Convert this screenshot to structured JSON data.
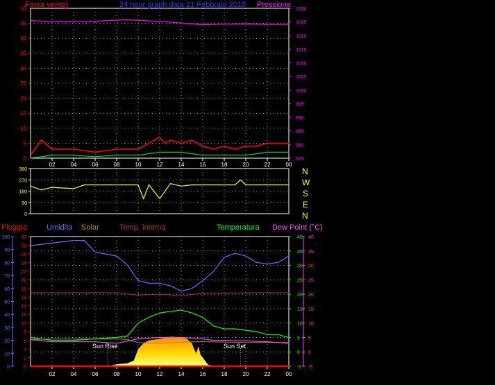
{
  "colors": {
    "background": "#000000",
    "axis_grid": "#ffffff",
    "wind": "#ff0000",
    "gust": "#ffffff",
    "wind_avg": "#00ff00",
    "pressure": "#ff00ff",
    "direction": "#ffff00",
    "humidity": "#6a6aff",
    "solar": "#a09030",
    "temp_int": "#aa3333",
    "temperature": "#00ff00",
    "dewpoint": "#ff44ff",
    "rain": "#ff0000",
    "sun": "#ffd700"
  },
  "header": {
    "wind_label": "Forza vento)",
    "title": "24 hour graph data   21 Febbraio 2016",
    "pressure_label": "Pressione"
  },
  "compass": [
    "N",
    "W",
    "S",
    "E",
    "N"
  ],
  "lower_labels": {
    "rain": "Pioggia",
    "humidity": "Umidita",
    "solar": "Solar",
    "temp_int": "Temp. interna",
    "temperature": "Temperatura",
    "dewpoint": "Dew Point (°C)"
  },
  "annotations": {
    "sun_rise": "Sun Rise",
    "sun_set": "Sun Set"
  },
  "chart_data": [
    {
      "type": "line",
      "name": "wind-pressure",
      "x_ticks": [
        "02",
        "04",
        "06",
        "08",
        "10",
        "12",
        "14",
        "16",
        "18",
        "20",
        "22",
        "00"
      ],
      "x_range_hours": [
        0,
        24
      ],
      "y_left": {
        "label": "Forza vento)",
        "ticks": [
          0,
          5,
          10,
          15,
          20,
          25,
          30,
          35,
          40,
          45,
          50
        ],
        "range": [
          0,
          50
        ]
      },
      "y_right": {
        "label": "Pressione",
        "ticks": [
          975,
          980,
          985,
          990,
          995,
          1000,
          1005,
          1010,
          1015,
          1020,
          1025,
          1030
        ],
        "range": [
          975,
          1030
        ]
      },
      "series": [
        {
          "name": "Pressione",
          "points": [
            [
              0,
              1025.5
            ],
            [
              3,
              1025
            ],
            [
              6,
              1025.3
            ],
            [
              9,
              1025.8
            ],
            [
              11,
              1025.4
            ],
            [
              13,
              1024.9
            ],
            [
              15,
              1024.3
            ],
            [
              16,
              1024
            ],
            [
              18,
              1024.2
            ],
            [
              20,
              1024.3
            ],
            [
              22,
              1024.1
            ],
            [
              24,
              1024.1
            ]
          ]
        },
        {
          "points": [
            [
              0,
              1
            ],
            [
              1,
              6
            ],
            [
              2,
              3
            ],
            [
              4,
              3
            ],
            [
              6,
              2
            ],
            [
              8,
              3
            ],
            [
              10,
              3
            ],
            [
              11,
              5
            ],
            [
              12,
              7
            ],
            [
              12.5,
              5
            ],
            [
              13,
              6
            ],
            [
              14,
              5
            ],
            [
              15,
              6
            ],
            [
              16,
              4
            ],
            [
              17,
              3
            ],
            [
              18,
              4
            ],
            [
              19,
              3
            ],
            [
              20,
              4
            ],
            [
              21,
              4
            ],
            [
              22,
              5
            ],
            [
              23,
              5
            ],
            [
              24,
              5
            ]
          ]
        },
        {
          "points": [
            [
              0,
              0
            ],
            [
              2,
              1
            ],
            [
              4,
              1
            ],
            [
              6,
              0.5
            ],
            [
              8,
              1
            ],
            [
              10,
              1
            ],
            [
              12,
              2
            ],
            [
              14,
              2
            ],
            [
              16,
              1
            ],
            [
              18,
              1
            ],
            [
              20,
              1
            ],
            [
              22,
              2
            ],
            [
              24,
              2
            ]
          ]
        }
      ]
    },
    {
      "type": "line",
      "name": "wind-direction",
      "x_ticks": [
        "02",
        "04",
        "06",
        "08",
        "10",
        "12",
        "14",
        "16",
        "18",
        "20",
        "22",
        "00"
      ],
      "y_left": {
        "ticks": [
          0,
          90,
          180,
          270,
          360
        ],
        "range": [
          0,
          360
        ]
      },
      "series": [
        {
          "points": [
            [
              0,
              220
            ],
            [
              1,
              190
            ],
            [
              2,
              210
            ],
            [
              4,
              200
            ],
            [
              5,
              230
            ],
            [
              7,
              230
            ],
            [
              9,
              230
            ],
            [
              10,
              230
            ],
            [
              10.5,
              120
            ],
            [
              11,
              230
            ],
            [
              12,
              120
            ],
            [
              13,
              240
            ],
            [
              14,
              220
            ],
            [
              15,
              230
            ],
            [
              17,
              230
            ],
            [
              19,
              230
            ],
            [
              19.5,
              270
            ],
            [
              20,
              230
            ],
            [
              22,
              230
            ],
            [
              24,
              230
            ]
          ]
        }
      ]
    },
    {
      "type": "line",
      "name": "weather-daily",
      "x_ticks": [
        "02",
        "04",
        "06",
        "08",
        "10",
        "12",
        "14",
        "16",
        "18",
        "20",
        "22",
        "00"
      ],
      "y_left_humidity": {
        "ticks": [
          0,
          10,
          20,
          30,
          40,
          50,
          60,
          70,
          80,
          90,
          100
        ],
        "range": [
          0,
          100
        ]
      },
      "y_left_rain": {
        "ticks": [
          0,
          2,
          4,
          6,
          8,
          10,
          12,
          14,
          16,
          18,
          20,
          22,
          24,
          26,
          28,
          30
        ],
        "range": [
          0,
          30
        ]
      },
      "y_right_temp": {
        "ticks": [
          -5,
          0,
          5,
          10,
          15,
          20,
          25,
          30,
          35,
          40
        ],
        "range": [
          -5,
          40
        ]
      },
      "y_right_dew": {
        "ticks": [
          -5,
          0,
          5,
          10,
          15,
          20,
          25,
          30,
          35,
          40
        ],
        "range": [
          -5,
          40
        ]
      },
      "series": [
        {
          "name": "Umidita",
          "points": [
            [
              0,
              93
            ],
            [
              2,
              95
            ],
            [
              4,
              97
            ],
            [
              5,
              97
            ],
            [
              6,
              88
            ],
            [
              8,
              85
            ],
            [
              9,
              78
            ],
            [
              10,
              66
            ],
            [
              11,
              64
            ],
            [
              12,
              64
            ],
            [
              13,
              62
            ],
            [
              14,
              58
            ],
            [
              15,
              60
            ],
            [
              16,
              66
            ],
            [
              17,
              73
            ],
            [
              18,
              84
            ],
            [
              19,
              87
            ],
            [
              20,
              85
            ],
            [
              21,
              80
            ],
            [
              22,
              79
            ],
            [
              23,
              80
            ],
            [
              24,
              85
            ]
          ]
        },
        {
          "name": "Temp. interna",
          "points": [
            [
              0,
              20.5
            ],
            [
              4,
              20.5
            ],
            [
              8,
              20.5
            ],
            [
              10,
              19.7
            ],
            [
              12,
              20
            ],
            [
              14,
              19.5
            ],
            [
              16,
              20.3
            ],
            [
              20,
              20.5
            ],
            [
              24,
              20.5
            ]
          ]
        },
        {
          "name": "Temperatura",
          "points": [
            [
              0,
              5
            ],
            [
              2,
              4
            ],
            [
              4,
              4
            ],
            [
              6,
              4.5
            ],
            [
              8,
              5
            ],
            [
              9,
              5.5
            ],
            [
              10,
              10
            ],
            [
              11,
              12
            ],
            [
              12,
              13.5
            ],
            [
              13,
              14
            ],
            [
              14,
              14.5
            ],
            [
              15,
              13.5
            ],
            [
              16,
              12
            ],
            [
              17,
              9
            ],
            [
              18,
              8
            ],
            [
              19,
              8
            ],
            [
              20,
              7.5
            ],
            [
              21,
              7
            ],
            [
              22,
              6
            ],
            [
              23,
              6
            ],
            [
              24,
              5
            ]
          ]
        },
        {
          "name": "Dew Point (°C)",
          "points": [
            [
              0,
              4.3
            ],
            [
              2,
              3.5
            ],
            [
              4,
              3.5
            ],
            [
              6,
              3.5
            ],
            [
              8,
              3
            ],
            [
              10,
              4.5
            ],
            [
              12,
              5
            ],
            [
              14,
              5
            ],
            [
              16,
              4.5
            ],
            [
              17,
              4
            ],
            [
              18,
              4
            ],
            [
              20,
              3.8
            ],
            [
              22,
              3.5
            ],
            [
              24,
              3
            ]
          ]
        },
        {
          "name": "Solar",
          "points": [
            [
              0,
              6.2
            ],
            [
              2,
              6.3
            ],
            [
              4,
              6.3
            ],
            [
              6,
              6.3
            ],
            [
              8,
              6.3
            ],
            [
              9,
              6.2
            ],
            [
              10,
              5.5
            ],
            [
              12,
              5.3
            ],
            [
              14,
              5.6
            ],
            [
              16,
              5.7
            ],
            [
              18,
              5.6
            ],
            [
              20,
              5.5
            ],
            [
              22,
              5.5
            ],
            [
              24,
              5.5
            ]
          ]
        },
        {
          "name": "Pioggia",
          "points": [
            [
              0,
              0
            ],
            [
              24,
              0
            ]
          ]
        },
        {
          "points": [
            [
              7.2,
              0
            ],
            [
              7.5,
              0.3
            ],
            [
              8,
              0.7
            ],
            [
              9,
              1
            ],
            [
              9.6,
              2
            ],
            [
              9.8,
              4
            ],
            [
              10,
              6
            ],
            [
              10.5,
              8
            ],
            [
              11,
              9
            ],
            [
              12,
              9.5
            ],
            [
              13,
              10.3
            ],
            [
              14,
              10
            ],
            [
              14.5,
              9.6
            ],
            [
              15,
              8
            ],
            [
              15.2,
              6
            ],
            [
              15.4,
              4.5
            ],
            [
              15.6,
              7
            ],
            [
              15.8,
              4
            ],
            [
              16,
              3
            ],
            [
              16.5,
              0.5
            ],
            [
              17,
              0.2
            ],
            [
              19.5,
              0
            ]
          ]
        }
      ],
      "sun_rise_hour": 7.2,
      "sun_set_hour": 19.5
    }
  ]
}
